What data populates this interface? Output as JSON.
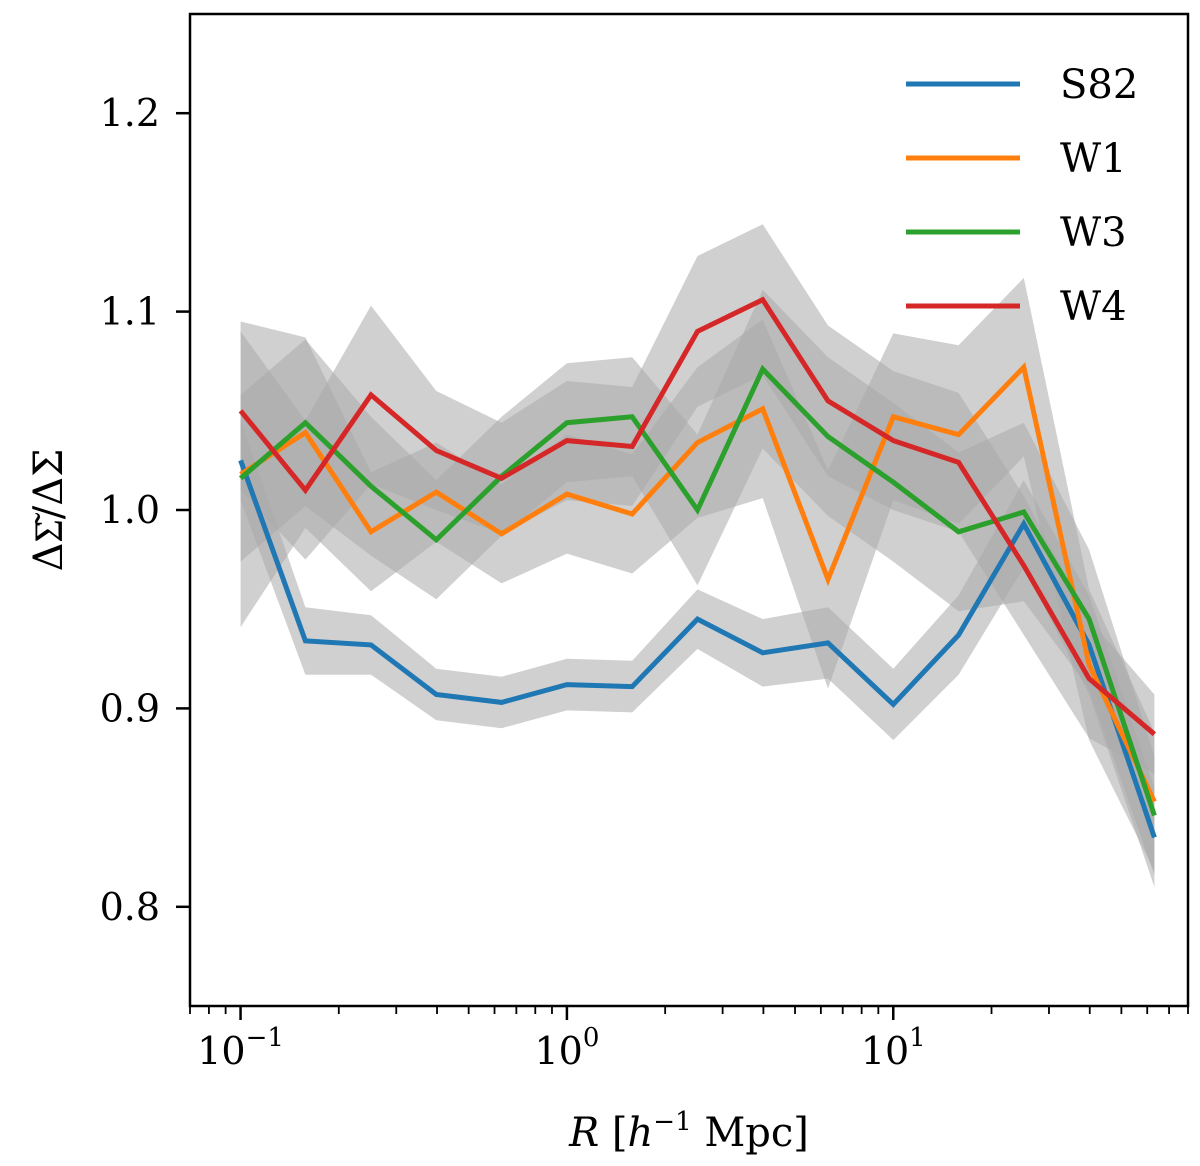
{
  "chart_data": {
    "type": "line",
    "xscale": "log",
    "xlim": [
      0.07,
      80
    ],
    "ylim": [
      0.75,
      1.25
    ],
    "xlabel_parts": {
      "var": "R",
      "open": " [",
      "h": "h",
      "exp": "−1",
      "unit": " Mpc]"
    },
    "ylabel": "ΔΣ͂/ΔΣ",
    "grid": false,
    "legend_position": "top-right",
    "x_ticks": [
      {
        "value": 0.1,
        "base": "10",
        "exp": "−1"
      },
      {
        "value": 1,
        "base": "10",
        "exp": "0"
      },
      {
        "value": 10,
        "base": "10",
        "exp": "1"
      }
    ],
    "y_ticks": [
      {
        "value": 0.8,
        "label": "0.8"
      },
      {
        "value": 0.9,
        "label": "0.9"
      },
      {
        "value": 1.0,
        "label": "1.0"
      },
      {
        "value": 1.1,
        "label": "1.1"
      },
      {
        "value": 1.2,
        "label": "1.2"
      }
    ],
    "x": [
      0.1,
      0.158,
      0.251,
      0.398,
      0.631,
      1.0,
      1.585,
      2.512,
      3.981,
      6.31,
      10.0,
      15.85,
      25.12,
      39.81,
      63.1
    ],
    "band_color": "#a9a9a9",
    "series": [
      {
        "name": "S82",
        "color": "#1f77b4",
        "values": [
          1.025,
          0.934,
          0.932,
          0.907,
          0.903,
          0.912,
          0.911,
          0.945,
          0.928,
          0.933,
          0.902,
          0.937,
          0.993,
          0.932,
          0.835
        ],
        "err": [
          0.02,
          0.017,
          0.015,
          0.013,
          0.013,
          0.013,
          0.013,
          0.015,
          0.017,
          0.018,
          0.018,
          0.02,
          0.022,
          0.025,
          0.025
        ]
      },
      {
        "name": "W1",
        "color": "#ff7f0e",
        "values": [
          1.018,
          1.039,
          0.989,
          1.009,
          0.988,
          1.008,
          0.998,
          1.034,
          1.051,
          0.965,
          1.047,
          1.038,
          1.072,
          0.922,
          0.853
        ],
        "err": [
          0.077,
          0.048,
          0.03,
          0.025,
          0.025,
          0.03,
          0.03,
          0.038,
          0.045,
          0.055,
          0.042,
          0.045,
          0.045,
          0.038,
          0.035
        ]
      },
      {
        "name": "W3",
        "color": "#2ca02c",
        "values": [
          1.016,
          1.044,
          1.012,
          0.985,
          1.017,
          1.044,
          1.047,
          1.0,
          1.071,
          1.037,
          1.014,
          0.989,
          0.999,
          0.945,
          0.846
        ],
        "err": [
          0.042,
          0.042,
          0.035,
          0.03,
          0.03,
          0.03,
          0.03,
          0.038,
          0.04,
          0.04,
          0.04,
          0.04,
          0.045,
          0.035,
          0.03
        ]
      },
      {
        "name": "W4",
        "color": "#d62728",
        "values": [
          1.05,
          1.01,
          1.058,
          1.03,
          1.016,
          1.035,
          1.032,
          1.09,
          1.106,
          1.055,
          1.035,
          1.024,
          0.972,
          0.915,
          0.887
        ],
        "err": [
          0.04,
          0.035,
          0.045,
          0.03,
          0.028,
          0.03,
          0.03,
          0.038,
          0.038,
          0.038,
          0.035,
          0.035,
          0.035,
          0.03,
          0.02
        ]
      }
    ]
  }
}
